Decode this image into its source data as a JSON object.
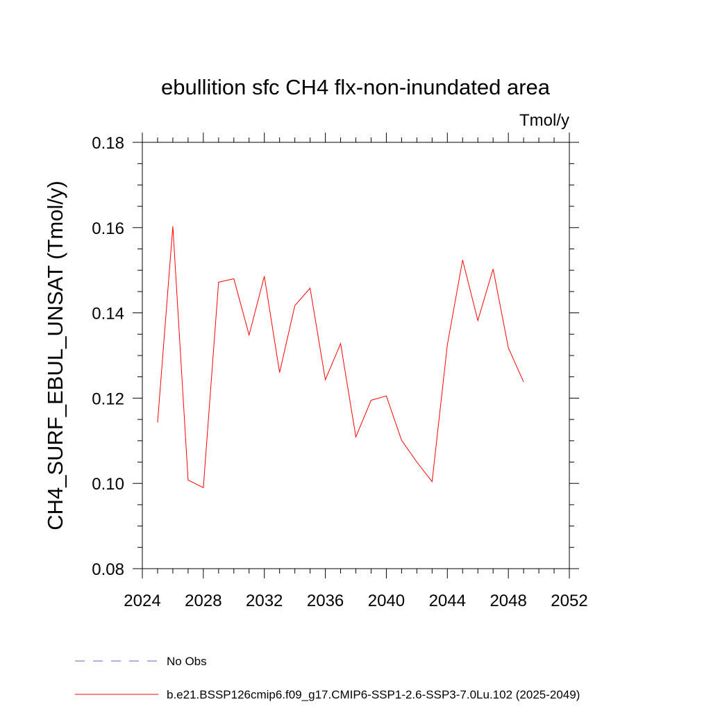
{
  "chart_data": {
    "type": "line",
    "title": "ebullition sfc CH4 flx-non-inundated area",
    "units": "Tmol/y",
    "ylabel": "CH4_SURF_EBUL_UNSAT  (Tmol/y)",
    "xlabel": "",
    "xlim": [
      2024,
      2052
    ],
    "ylim": [
      0.08,
      0.18
    ],
    "xticks": [
      "2024",
      "2028",
      "2032",
      "2036",
      "2040",
      "2044",
      "2048",
      "2052"
    ],
    "yticks": [
      "0.08",
      "0.10",
      "0.12",
      "0.14",
      "0.16",
      "0.18"
    ],
    "xtick_values": [
      2024,
      2028,
      2032,
      2036,
      2040,
      2044,
      2048,
      2052
    ],
    "ytick_values": [
      0.08,
      0.1,
      0.12,
      0.14,
      0.16,
      0.18
    ],
    "grid": false,
    "legend_position": "bottom",
    "series": [
      {
        "name": "No Obs",
        "color": "#6a5acd",
        "style": "dashed",
        "x": [],
        "values": []
      },
      {
        "name": "b.e21.BSSP126cmip6.f09_g17.CMIP6-SSP1-2.6-SSP3-7.0Lu.102 (2025-2049)",
        "color": "#ff0000",
        "style": "solid",
        "x": [
          2025,
          2026,
          2027,
          2028,
          2029,
          2030,
          2031,
          2032,
          2033,
          2034,
          2035,
          2036,
          2037,
          2038,
          2039,
          2040,
          2041,
          2042,
          2043,
          2044,
          2045,
          2046,
          2047,
          2048,
          2049
        ],
        "values": [
          0.1143,
          0.1603,
          0.1008,
          0.099,
          0.1472,
          0.148,
          0.1348,
          0.1486,
          0.126,
          0.1417,
          0.1458,
          0.1243,
          0.1328,
          0.1109,
          0.1195,
          0.1205,
          0.1101,
          0.105,
          0.1004,
          0.1325,
          0.1524,
          0.1382,
          0.1503,
          0.1318,
          0.1238
        ]
      }
    ]
  }
}
